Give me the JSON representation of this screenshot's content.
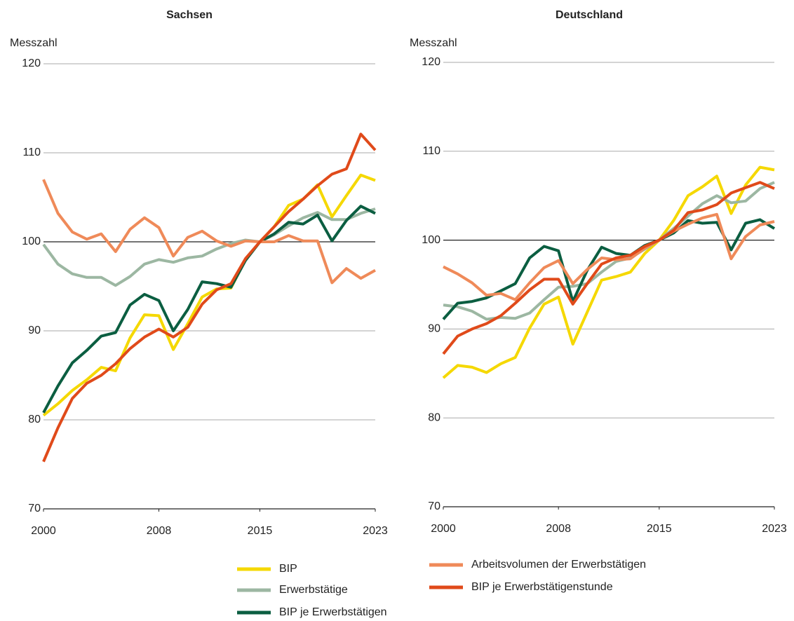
{
  "chart_data": [
    {
      "type": "line",
      "title": "Sachsen",
      "y_label": "Messzahl",
      "x": [
        2000,
        2001,
        2002,
        2003,
        2004,
        2005,
        2006,
        2007,
        2008,
        2009,
        2010,
        2011,
        2012,
        2013,
        2014,
        2015,
        2016,
        2017,
        2018,
        2019,
        2020,
        2021,
        2022,
        2023
      ],
      "xlim": [
        2000,
        2023
      ],
      "xticks": [
        2000,
        2008,
        2015,
        2023
      ],
      "ylim": [
        70,
        120
      ],
      "yticks": [
        70,
        80,
        90,
        100,
        110,
        120
      ],
      "grid": true,
      "baseline": 100,
      "series": [
        {
          "name": "BIP",
          "color": "#f5d800",
          "values": [
            80.5,
            81.8,
            83.3,
            84.5,
            85.9,
            85.5,
            89.2,
            91.8,
            91.7,
            87.9,
            90.8,
            93.8,
            94.7,
            94.8,
            98.0,
            100,
            101.7,
            104.1,
            104.8,
            106.4,
            102.8,
            105.2,
            107.5,
            106.9
          ]
        },
        {
          "name": "Erwerbstätige",
          "color": "#9cb7a2",
          "values": [
            99.7,
            97.5,
            96.4,
            96.0,
            96.0,
            95.1,
            96.1,
            97.5,
            98.0,
            97.7,
            98.2,
            98.4,
            99.2,
            99.8,
            100.2,
            100,
            100.8,
            101.8,
            102.7,
            103.3,
            102.5,
            102.5,
            103.2,
            103.7
          ]
        },
        {
          "name": "BIP je Erwerbstätigen",
          "color": "#0b5e41",
          "values": [
            80.8,
            83.8,
            86.4,
            87.8,
            89.4,
            89.8,
            92.9,
            94.1,
            93.4,
            90.0,
            92.4,
            95.5,
            95.3,
            94.9,
            97.9,
            100,
            100.9,
            102.2,
            102.0,
            103.0,
            100.1,
            102.4,
            104.0,
            103.2
          ]
        },
        {
          "name": "Arbeitsvolumen der Erwerbstätigen",
          "color": "#ef8a59",
          "values": [
            107.0,
            103.2,
            101.1,
            100.3,
            100.9,
            98.9,
            101.4,
            102.7,
            101.6,
            98.4,
            100.5,
            101.2,
            100.1,
            99.5,
            100.1,
            100,
            100.0,
            100.7,
            100.1,
            100.1,
            95.4,
            97.0,
            95.9,
            96.8
          ]
        },
        {
          "name": "BIP je Erwerbstätigenstunde",
          "color": "#e04a1a",
          "values": [
            75.3,
            79.1,
            82.4,
            84.1,
            85.0,
            86.3,
            88.0,
            89.3,
            90.2,
            89.3,
            90.4,
            93.0,
            94.6,
            95.3,
            98.1,
            100,
            101.7,
            103.4,
            104.8,
            106.3,
            107.6,
            108.2,
            112.1,
            110.3
          ]
        }
      ]
    },
    {
      "type": "line",
      "title": "Deutschland",
      "y_label": "Messzahl",
      "x": [
        2000,
        2001,
        2002,
        2003,
        2004,
        2005,
        2006,
        2007,
        2008,
        2009,
        2010,
        2011,
        2012,
        2013,
        2014,
        2015,
        2016,
        2017,
        2018,
        2019,
        2020,
        2021,
        2022,
        2023
      ],
      "xlim": [
        2000,
        2023
      ],
      "xticks": [
        2000,
        2008,
        2015,
        2023
      ],
      "ylim": [
        70,
        120
      ],
      "yticks": [
        70,
        80,
        90,
        100,
        110,
        120
      ],
      "grid": true,
      "baseline": 100,
      "series": [
        {
          "color": "#f5d800",
          "values": [
            84.5,
            85.9,
            85.7,
            85.1,
            86.1,
            86.8,
            90.1,
            92.8,
            93.6,
            88.3,
            91.9,
            95.5,
            95.9,
            96.4,
            98.5,
            100,
            102.2,
            105.0,
            106.0,
            107.2,
            103.0,
            106.2,
            108.2,
            107.9
          ]
        },
        {
          "color": "#9cb7a2",
          "values": [
            92.7,
            92.5,
            92.0,
            91.1,
            91.3,
            91.2,
            91.8,
            93.3,
            94.7,
            94.8,
            95.1,
            96.4,
            97.6,
            98.0,
            99.0,
            100,
            101.3,
            102.7,
            104.1,
            105.0,
            104.2,
            104.4,
            105.8,
            106.5
          ]
        },
        {
          "color": "#0b5e41",
          "values": [
            91.1,
            92.9,
            93.1,
            93.5,
            94.3,
            95.1,
            98.0,
            99.3,
            98.8,
            93.1,
            96.6,
            99.2,
            98.5,
            98.3,
            99.4,
            100,
            100.8,
            102.2,
            101.9,
            102.0,
            98.9,
            101.9,
            102.3,
            101.3
          ]
        },
        {
          "color": "#ef8a59",
          "values": [
            97.0,
            96.2,
            95.2,
            93.8,
            94.0,
            93.3,
            95.2,
            96.9,
            97.7,
            95.1,
            96.7,
            98.0,
            97.8,
            97.9,
            99.1,
            100,
            101.0,
            101.8,
            102.5,
            102.9,
            97.9,
            100.4,
            101.7,
            102.1
          ]
        },
        {
          "color": "#e04a1a",
          "values": [
            87.2,
            89.2,
            90.0,
            90.6,
            91.5,
            92.9,
            94.4,
            95.6,
            95.6,
            92.8,
            95.1,
            97.3,
            98.0,
            98.3,
            99.3,
            100,
            101.1,
            103.1,
            103.4,
            104.0,
            105.3,
            105.9,
            106.5,
            105.8
          ]
        }
      ]
    }
  ]
}
